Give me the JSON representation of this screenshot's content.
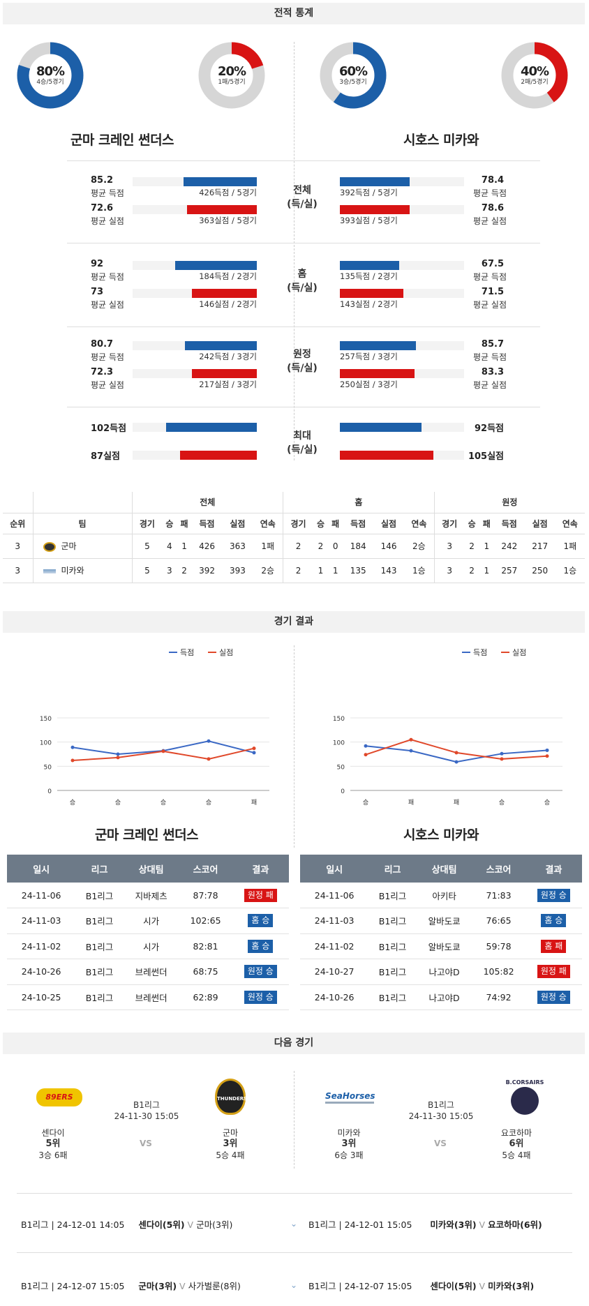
{
  "sections": {
    "stats": "전적 통계",
    "results": "경기 결과",
    "next": "다음 경기"
  },
  "donuts": [
    {
      "pct": "80%",
      "sub": "4승/5경기",
      "value": 0.8,
      "color": "#1c5fa8"
    },
    {
      "pct": "20%",
      "sub": "1패/5경기",
      "value": 0.2,
      "color": "#d81414"
    },
    {
      "pct": "60%",
      "sub": "3승/5경기",
      "value": 0.6,
      "color": "#1c5fa8"
    },
    {
      "pct": "40%",
      "sub": "2패/5경기",
      "value": 0.4,
      "color": "#d81414"
    }
  ],
  "teams": {
    "left": "군마 크레인 썬더스",
    "right": "시호스 미카와"
  },
  "comparison": [
    {
      "label1": "전체",
      "label2": "(득/실)",
      "left": [
        {
          "val": "85.2",
          "sub": "평균 득점",
          "bar": "426득점 / 5경기",
          "frac": 0.59,
          "color": "blue"
        },
        {
          "val": "72.6",
          "sub": "평균 실점",
          "bar": "363실점 / 5경기",
          "frac": 0.56,
          "color": "red"
        }
      ],
      "right": [
        {
          "val": "78.4",
          "sub": "평균 득점",
          "bar": "392득점 / 5경기",
          "frac": 0.56,
          "color": "blue"
        },
        {
          "val": "78.6",
          "sub": "평균 실점",
          "bar": "393실점 / 5경기",
          "frac": 0.56,
          "color": "red"
        }
      ]
    },
    {
      "label1": "홈",
      "label2": "(득/실)",
      "left": [
        {
          "val": "92",
          "sub": "평균 득점",
          "bar": "184득점 / 2경기",
          "frac": 0.66,
          "color": "blue"
        },
        {
          "val": "73",
          "sub": "평균 실점",
          "bar": "146실점 / 2경기",
          "frac": 0.52,
          "color": "red"
        }
      ],
      "right": [
        {
          "val": "67.5",
          "sub": "평균 득점",
          "bar": "135득점 / 2경기",
          "frac": 0.48,
          "color": "blue"
        },
        {
          "val": "71.5",
          "sub": "평균 실점",
          "bar": "143실점 / 2경기",
          "frac": 0.51,
          "color": "red"
        }
      ]
    },
    {
      "label1": "원정",
      "label2": "(득/실)",
      "left": [
        {
          "val": "80.7",
          "sub": "평균 득점",
          "bar": "242득점 / 3경기",
          "frac": 0.58,
          "color": "blue"
        },
        {
          "val": "72.3",
          "sub": "평균 실점",
          "bar": "217실점 / 3경기",
          "frac": 0.52,
          "color": "red"
        }
      ],
      "right": [
        {
          "val": "85.7",
          "sub": "평균 득점",
          "bar": "257득점 / 3경기",
          "frac": 0.61,
          "color": "blue"
        },
        {
          "val": "83.3",
          "sub": "평균 실점",
          "bar": "250실점 / 3경기",
          "frac": 0.6,
          "color": "red"
        }
      ]
    }
  ],
  "max": {
    "label1": "최대",
    "label2": "(득/실)",
    "left": [
      {
        "val": "102득점",
        "frac": 0.73,
        "color": "blue"
      },
      {
        "val": "87실점",
        "frac": 0.62,
        "color": "red"
      }
    ],
    "right": [
      {
        "val": "92득점",
        "frac": 0.66,
        "color": "blue"
      },
      {
        "val": "105실점",
        "frac": 0.75,
        "color": "red"
      }
    ]
  },
  "standings": {
    "groups": [
      "전체",
      "홈",
      "원정"
    ],
    "head": [
      "순위",
      "팀",
      "경기",
      "승",
      "패",
      "득점",
      "실점",
      "연속",
      "경기",
      "승",
      "패",
      "득점",
      "실점",
      "연속",
      "경기",
      "승",
      "패",
      "득점",
      "실점",
      "연속"
    ],
    "rows": [
      {
        "rank": "3",
        "team": "군마",
        "cells": [
          "5",
          "4",
          "1",
          "426",
          "363",
          "1패",
          "2",
          "2",
          "0",
          "184",
          "146",
          "2승",
          "3",
          "2",
          "1",
          "242",
          "217",
          "1패"
        ]
      },
      {
        "rank": "3",
        "team": "미카와",
        "cells": [
          "5",
          "3",
          "2",
          "392",
          "393",
          "2승",
          "2",
          "1",
          "1",
          "135",
          "143",
          "1승",
          "3",
          "2",
          "1",
          "257",
          "250",
          "1승"
        ]
      }
    ]
  },
  "legend": {
    "scored": "득점",
    "conceded": "실점"
  },
  "chart_data": [
    {
      "type": "line",
      "title": "군마 크레인 썬더스",
      "categories": [
        "승",
        "승",
        "승",
        "승",
        "패"
      ],
      "ylim": [
        0,
        150
      ],
      "yticks": [
        0,
        50,
        100,
        150
      ],
      "series": [
        {
          "name": "득점",
          "color": "#3a68c4",
          "values": [
            89,
            75,
            82,
            102,
            78
          ]
        },
        {
          "name": "실점",
          "color": "#e0482a",
          "values": [
            62,
            68,
            81,
            65,
            87
          ]
        }
      ]
    },
    {
      "type": "line",
      "title": "시호스 미카와",
      "categories": [
        "승",
        "패",
        "패",
        "승",
        "승"
      ],
      "ylim": [
        0,
        150
      ],
      "yticks": [
        0,
        50,
        100,
        150
      ],
      "series": [
        {
          "name": "득점",
          "color": "#3a68c4",
          "values": [
            92,
            82,
            59,
            76,
            83
          ]
        },
        {
          "name": "실점",
          "color": "#e0482a",
          "values": [
            74,
            105,
            78,
            65,
            71
          ]
        }
      ]
    }
  ],
  "results": {
    "head": [
      "일시",
      "리그",
      "상대팀",
      "스코어",
      "결과"
    ],
    "left": [
      {
        "date": "24-11-06",
        "league": "B1리그",
        "opp": "지바제츠",
        "score": "87:78",
        "result": "원정 패",
        "color": "red"
      },
      {
        "date": "24-11-03",
        "league": "B1리그",
        "opp": "시가",
        "score": "102:65",
        "result": "홈 승",
        "color": "blue"
      },
      {
        "date": "24-11-02",
        "league": "B1리그",
        "opp": "시가",
        "score": "82:81",
        "result": "홈 승",
        "color": "blue"
      },
      {
        "date": "24-10-26",
        "league": "B1리그",
        "opp": "브레썬더",
        "score": "68:75",
        "result": "원정 승",
        "color": "blue"
      },
      {
        "date": "24-10-25",
        "league": "B1리그",
        "opp": "브레썬더",
        "score": "62:89",
        "result": "원정 승",
        "color": "blue"
      }
    ],
    "right": [
      {
        "date": "24-11-06",
        "league": "B1리그",
        "opp": "아키타",
        "score": "71:83",
        "result": "원정 승",
        "color": "blue"
      },
      {
        "date": "24-11-03",
        "league": "B1리그",
        "opp": "알바도쿄",
        "score": "76:65",
        "result": "홈 승",
        "color": "blue"
      },
      {
        "date": "24-11-02",
        "league": "B1리그",
        "opp": "알바도쿄",
        "score": "59:78",
        "result": "홈 패",
        "color": "red"
      },
      {
        "date": "24-10-27",
        "league": "B1리그",
        "opp": "나고야D",
        "score": "105:82",
        "result": "원정 패",
        "color": "red"
      },
      {
        "date": "24-10-26",
        "league": "B1리그",
        "opp": "나고야D",
        "score": "74:92",
        "result": "원정 승",
        "color": "blue"
      }
    ]
  },
  "next": [
    {
      "home": {
        "logo": "BREX-like",
        "name": "센다이",
        "rank": "5위",
        "record": "3승 6패",
        "logo_text": "89ERS"
      },
      "away": {
        "name": "군마",
        "rank": "3위",
        "record": "5승 4패",
        "logo_text": "THUNDERS"
      },
      "league": "B1리그",
      "date": "24-11-30 15:05",
      "vs": "VS"
    },
    {
      "home": {
        "name": "미카와",
        "rank": "3위",
        "record": "6승 3패",
        "logo_text": "SeaHorses"
      },
      "away": {
        "name": "요코하마",
        "rank": "6위",
        "record": "5승 4패",
        "logo_text": "B.CORSAIRS"
      },
      "league": "B1리그",
      "date": "24-11-30 15:05",
      "vs": "VS"
    }
  ],
  "upcoming": [
    {
      "left": {
        "info": "B1리그 | 24-12-01 14:05",
        "t1": "센다이(5위)",
        "t2": "군마(3위)"
      },
      "right": {
        "info": "B1리그 | 24-12-01 15:05",
        "t1": "미카와(3위)",
        "t2": "요코하마(6위)"
      }
    },
    {
      "left": {
        "info": "B1리그 | 24-12-07 15:05",
        "t1": "군마(3위)",
        "t2": "사가벌룬(8위)"
      },
      "right": {
        "info": "B1리그 | 24-12-07 15:05",
        "t1": "센다이(5위)",
        "t2": "미카와(3위)"
      }
    }
  ]
}
